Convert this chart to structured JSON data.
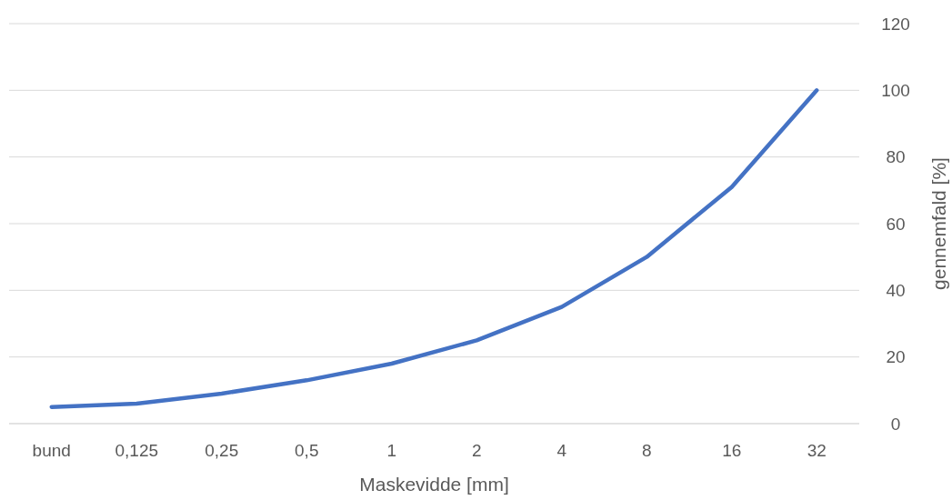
{
  "chart_data": {
    "type": "line",
    "xlabel": "Maskevidde [mm]",
    "ylabel": "gennemfald [%]",
    "categories": [
      "bund",
      "0,125",
      "0,25",
      "0,5",
      "1",
      "2",
      "4",
      "8",
      "16",
      "32"
    ],
    "series": [
      {
        "color": "#4472c4",
        "values": [
          5,
          6,
          9,
          13,
          18,
          25,
          35,
          50,
          71,
          100
        ]
      }
    ],
    "ylim": [
      0,
      120
    ],
    "yticks": [
      0,
      20,
      40,
      60,
      80,
      100,
      120
    ],
    "grid": "y",
    "marker": "none",
    "line_style": "solid"
  }
}
